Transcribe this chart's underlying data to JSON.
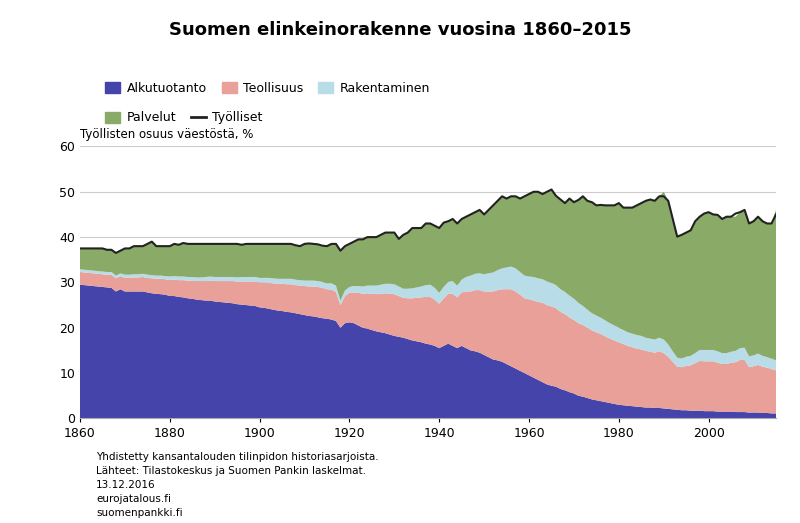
{
  "title": "Suomen elinkeinorakenne vuosina 1860–2015",
  "ylabel": "Työllisten osuus väestöstä, %",
  "footnote1": "Yhdistetty kansantalouden tilinpidon historiasarjoista.",
  "footnote2": "Lähteet: Tilastokeskus ja Suomen Pankin laskelmat.",
  "footnote3": "13.12.2016",
  "footnote4": "eurojatalous.fi",
  "footnote5": "suomenpankki.fi",
  "legend": [
    "Alkutuotanto",
    "Teollisuus",
    "Rakentaminen",
    "Palvelut",
    "Työlliset"
  ],
  "colors": {
    "alkutuotanto": "#4444aa",
    "teollisuus": "#e8a098",
    "rakentaminen": "#b8dce8",
    "palvelut": "#8aaa68",
    "tyolliset": "#222222"
  },
  "years": [
    1860,
    1861,
    1862,
    1863,
    1864,
    1865,
    1866,
    1867,
    1868,
    1869,
    1870,
    1871,
    1872,
    1873,
    1874,
    1875,
    1876,
    1877,
    1878,
    1879,
    1880,
    1881,
    1882,
    1883,
    1884,
    1885,
    1886,
    1887,
    1888,
    1889,
    1890,
    1891,
    1892,
    1893,
    1894,
    1895,
    1896,
    1897,
    1898,
    1899,
    1900,
    1901,
    1902,
    1903,
    1904,
    1905,
    1906,
    1907,
    1908,
    1909,
    1910,
    1911,
    1912,
    1913,
    1914,
    1915,
    1916,
    1917,
    1918,
    1919,
    1920,
    1921,
    1922,
    1923,
    1924,
    1925,
    1926,
    1927,
    1928,
    1929,
    1930,
    1931,
    1932,
    1933,
    1934,
    1935,
    1936,
    1937,
    1938,
    1939,
    1940,
    1941,
    1942,
    1943,
    1944,
    1945,
    1946,
    1947,
    1948,
    1949,
    1950,
    1951,
    1952,
    1953,
    1954,
    1955,
    1956,
    1957,
    1958,
    1959,
    1960,
    1961,
    1962,
    1963,
    1964,
    1965,
    1966,
    1967,
    1968,
    1969,
    1970,
    1971,
    1972,
    1973,
    1974,
    1975,
    1976,
    1977,
    1978,
    1979,
    1980,
    1981,
    1982,
    1983,
    1984,
    1985,
    1986,
    1987,
    1988,
    1989,
    1990,
    1991,
    1992,
    1993,
    1994,
    1995,
    1996,
    1997,
    1998,
    1999,
    2000,
    2001,
    2002,
    2003,
    2004,
    2005,
    2006,
    2007,
    2008,
    2009,
    2010,
    2011,
    2012,
    2013,
    2014,
    2015
  ],
  "alkutuotanto": [
    29.5,
    29.4,
    29.3,
    29.2,
    29.1,
    29.0,
    28.9,
    28.8,
    28.0,
    28.5,
    28.0,
    28.0,
    28.0,
    28.0,
    28.0,
    27.8,
    27.6,
    27.5,
    27.4,
    27.3,
    27.0,
    27.0,
    26.8,
    26.7,
    26.5,
    26.4,
    26.2,
    26.1,
    26.0,
    26.0,
    25.8,
    25.7,
    25.6,
    25.5,
    25.4,
    25.2,
    25.1,
    25.0,
    24.9,
    24.8,
    24.5,
    24.4,
    24.2,
    24.0,
    23.8,
    23.7,
    23.5,
    23.4,
    23.2,
    23.0,
    22.8,
    22.6,
    22.5,
    22.3,
    22.1,
    22.0,
    21.8,
    21.5,
    20.0,
    21.0,
    21.2,
    21.0,
    20.5,
    20.0,
    19.8,
    19.5,
    19.2,
    19.0,
    18.8,
    18.5,
    18.2,
    18.0,
    17.8,
    17.5,
    17.2,
    17.0,
    16.8,
    16.5,
    16.3,
    16.0,
    15.5,
    16.0,
    16.5,
    16.0,
    15.5,
    16.0,
    15.5,
    15.0,
    14.8,
    14.5,
    14.0,
    13.5,
    13.0,
    12.8,
    12.5,
    12.0,
    11.5,
    11.0,
    10.5,
    10.0,
    9.5,
    9.0,
    8.5,
    8.0,
    7.5,
    7.2,
    7.0,
    6.5,
    6.2,
    5.8,
    5.5,
    5.0,
    4.8,
    4.5,
    4.2,
    4.0,
    3.8,
    3.6,
    3.4,
    3.2,
    3.0,
    2.9,
    2.8,
    2.7,
    2.6,
    2.5,
    2.4,
    2.4,
    2.3,
    2.3,
    2.2,
    2.1,
    2.0,
    1.9,
    1.8,
    1.8,
    1.7,
    1.7,
    1.7,
    1.6,
    1.6,
    1.6,
    1.5,
    1.5,
    1.5,
    1.5,
    1.4,
    1.4,
    1.4,
    1.3,
    1.3,
    1.3,
    1.2,
    1.2,
    1.1,
    1.1
  ],
  "teollisuus": [
    2.8,
    2.8,
    2.8,
    2.8,
    2.8,
    2.8,
    2.8,
    2.9,
    2.9,
    2.9,
    3.0,
    3.0,
    3.1,
    3.1,
    3.2,
    3.2,
    3.3,
    3.3,
    3.4,
    3.4,
    3.5,
    3.6,
    3.7,
    3.8,
    3.9,
    4.0,
    4.1,
    4.2,
    4.3,
    4.4,
    4.5,
    4.6,
    4.7,
    4.8,
    4.9,
    5.0,
    5.1,
    5.2,
    5.3,
    5.4,
    5.5,
    5.6,
    5.7,
    5.8,
    5.9,
    6.0,
    6.1,
    6.2,
    6.2,
    6.3,
    6.4,
    6.5,
    6.6,
    6.7,
    6.7,
    6.5,
    6.6,
    6.4,
    5.0,
    6.0,
    6.5,
    6.8,
    7.2,
    7.5,
    7.8,
    8.0,
    8.2,
    8.5,
    8.8,
    9.0,
    9.2,
    9.0,
    8.8,
    9.0,
    9.3,
    9.6,
    9.9,
    10.3,
    10.5,
    10.2,
    9.8,
    10.5,
    11.0,
    11.5,
    11.2,
    11.8,
    12.5,
    13.0,
    13.5,
    13.8,
    14.0,
    14.5,
    15.0,
    15.5,
    16.0,
    16.5,
    17.0,
    17.0,
    16.8,
    16.5,
    16.8,
    17.0,
    17.2,
    17.5,
    17.5,
    17.5,
    17.3,
    17.0,
    16.8,
    16.5,
    16.2,
    16.0,
    15.8,
    15.5,
    15.2,
    15.0,
    14.8,
    14.5,
    14.2,
    14.0,
    13.8,
    13.5,
    13.2,
    13.0,
    12.8,
    12.7,
    12.5,
    12.3,
    12.2,
    12.5,
    12.2,
    11.5,
    10.5,
    9.5,
    9.5,
    9.8,
    10.0,
    10.5,
    11.0,
    11.0,
    11.0,
    11.0,
    10.8,
    10.5,
    10.5,
    10.8,
    11.0,
    11.5,
    11.5,
    10.0,
    10.2,
    10.5,
    10.2,
    10.0,
    9.8,
    9.5
  ],
  "rakentaminen": [
    0.6,
    0.6,
    0.6,
    0.6,
    0.6,
    0.6,
    0.6,
    0.6,
    0.6,
    0.6,
    0.7,
    0.7,
    0.7,
    0.7,
    0.7,
    0.7,
    0.7,
    0.7,
    0.7,
    0.7,
    0.8,
    0.8,
    0.8,
    0.8,
    0.8,
    0.8,
    0.8,
    0.8,
    0.9,
    0.9,
    0.9,
    0.9,
    0.9,
    0.9,
    0.9,
    0.9,
    1.0,
    1.0,
    1.0,
    1.0,
    1.0,
    1.0,
    1.1,
    1.1,
    1.1,
    1.1,
    1.2,
    1.2,
    1.2,
    1.2,
    1.2,
    1.3,
    1.3,
    1.3,
    1.3,
    1.3,
    1.4,
    1.4,
    1.0,
    1.2,
    1.3,
    1.4,
    1.5,
    1.6,
    1.7,
    1.8,
    1.9,
    2.0,
    2.1,
    2.2,
    2.2,
    2.1,
    2.0,
    2.1,
    2.2,
    2.3,
    2.4,
    2.6,
    2.7,
    2.6,
    2.4,
    2.5,
    2.6,
    2.8,
    2.6,
    2.8,
    3.2,
    3.5,
    3.6,
    3.7,
    3.8,
    4.0,
    4.2,
    4.4,
    4.6,
    4.8,
    5.0,
    5.1,
    5.0,
    5.0,
    5.0,
    5.2,
    5.2,
    5.2,
    5.2,
    5.2,
    5.1,
    5.0,
    4.9,
    4.8,
    4.7,
    4.5,
    4.2,
    4.0,
    3.8,
    3.7,
    3.6,
    3.5,
    3.4,
    3.3,
    3.2,
    3.1,
    3.0,
    3.0,
    3.0,
    3.0,
    2.9,
    2.9,
    2.9,
    3.0,
    3.0,
    2.7,
    2.3,
    2.0,
    1.9,
    2.0,
    2.1,
    2.2,
    2.4,
    2.5,
    2.5,
    2.5,
    2.5,
    2.4,
    2.4,
    2.4,
    2.5,
    2.6,
    2.7,
    2.4,
    2.4,
    2.5,
    2.4,
    2.3,
    2.3,
    2.2
  ],
  "palvelut": [
    4.6,
    4.7,
    4.8,
    4.9,
    5.0,
    5.0,
    5.0,
    5.0,
    5.0,
    5.0,
    5.8,
    5.8,
    6.2,
    6.2,
    6.1,
    6.8,
    7.4,
    6.5,
    6.5,
    6.6,
    6.7,
    7.1,
    7.0,
    7.4,
    7.3,
    7.3,
    7.4,
    7.4,
    7.3,
    7.2,
    7.3,
    7.3,
    7.3,
    7.3,
    7.2,
    7.4,
    7.1,
    7.3,
    7.3,
    7.3,
    7.5,
    7.5,
    7.5,
    7.6,
    7.7,
    7.7,
    7.7,
    7.7,
    7.6,
    7.5,
    8.1,
    8.2,
    8.1,
    8.1,
    8.0,
    8.2,
    8.7,
    9.2,
    11.0,
    9.8,
    9.5,
    9.8,
    10.3,
    10.4,
    10.7,
    10.7,
    10.7,
    11.0,
    11.3,
    11.3,
    11.4,
    10.5,
    11.9,
    12.4,
    13.3,
    13.1,
    12.9,
    13.6,
    13.5,
    13.7,
    14.3,
    14.2,
    13.4,
    13.7,
    13.7,
    13.4,
    13.3,
    13.5,
    13.6,
    14.0,
    13.2,
    14.0,
    14.8,
    15.3,
    15.9,
    15.2,
    15.5,
    15.9,
    16.2,
    17.5,
    18.2,
    18.8,
    19.1,
    18.8,
    19.8,
    20.6,
    19.7,
    19.8,
    19.6,
    21.4,
    21.3,
    22.7,
    24.2,
    24.0,
    24.5,
    24.3,
    24.9,
    25.4,
    26.0,
    26.5,
    27.5,
    27.0,
    27.5,
    27.8,
    28.6,
    29.3,
    30.2,
    30.7,
    30.6,
    31.2,
    32.6,
    31.7,
    29.2,
    26.7,
    27.3,
    27.4,
    27.7,
    29.1,
    29.4,
    30.1,
    30.4,
    29.9,
    30.1,
    29.6,
    30.1,
    29.8,
    29.6,
    30.0,
    30.4,
    29.3,
    29.6,
    30.2,
    29.7,
    29.5,
    29.8,
    33.2
  ],
  "tyolliset": [
    37.5,
    37.5,
    37.5,
    37.5,
    37.5,
    37.5,
    37.2,
    37.2,
    36.5,
    37.0,
    37.5,
    37.5,
    38.0,
    38.0,
    38.0,
    38.5,
    39.0,
    38.0,
    38.0,
    38.0,
    38.0,
    38.5,
    38.3,
    38.7,
    38.5,
    38.5,
    38.5,
    38.5,
    38.5,
    38.5,
    38.5,
    38.5,
    38.5,
    38.5,
    38.5,
    38.5,
    38.3,
    38.5,
    38.5,
    38.5,
    38.5,
    38.5,
    38.5,
    38.5,
    38.5,
    38.5,
    38.5,
    38.5,
    38.2,
    38.0,
    38.5,
    38.6,
    38.5,
    38.4,
    38.1,
    38.0,
    38.5,
    38.5,
    37.0,
    38.0,
    38.5,
    39.0,
    39.5,
    39.5,
    40.0,
    40.0,
    40.0,
    40.5,
    41.0,
    41.0,
    41.0,
    39.6,
    40.5,
    41.0,
    42.0,
    42.0,
    42.0,
    43.0,
    43.0,
    42.5,
    42.0,
    43.2,
    43.5,
    44.0,
    43.0,
    44.0,
    44.5,
    45.0,
    45.5,
    46.0,
    45.0,
    46.0,
    47.0,
    48.0,
    49.0,
    48.5,
    49.0,
    49.0,
    48.5,
    49.0,
    49.5,
    50.0,
    50.0,
    49.5,
    50.0,
    50.5,
    49.1,
    48.3,
    47.5,
    48.5,
    47.7,
    48.2,
    49.0,
    48.0,
    47.7,
    47.0,
    47.1,
    47.0,
    47.0,
    47.0,
    47.5,
    46.5,
    46.5,
    46.5,
    47.0,
    47.5,
    48.0,
    48.3,
    48.0,
    49.0,
    49.0,
    48.0,
    44.0,
    40.1,
    40.5,
    41.0,
    41.5,
    43.5,
    44.5,
    45.2,
    45.5,
    45.0,
    44.9,
    44.0,
    44.5,
    44.5,
    45.2,
    45.5,
    46.0,
    43.0,
    43.5,
    44.5,
    43.5,
    43.0,
    43.0,
    45.0
  ],
  "ylim": [
    0,
    60
  ],
  "yticks": [
    0,
    10,
    20,
    30,
    40,
    50,
    60
  ],
  "xticks": [
    1860,
    1880,
    1900,
    1920,
    1940,
    1960,
    1980,
    2000
  ]
}
